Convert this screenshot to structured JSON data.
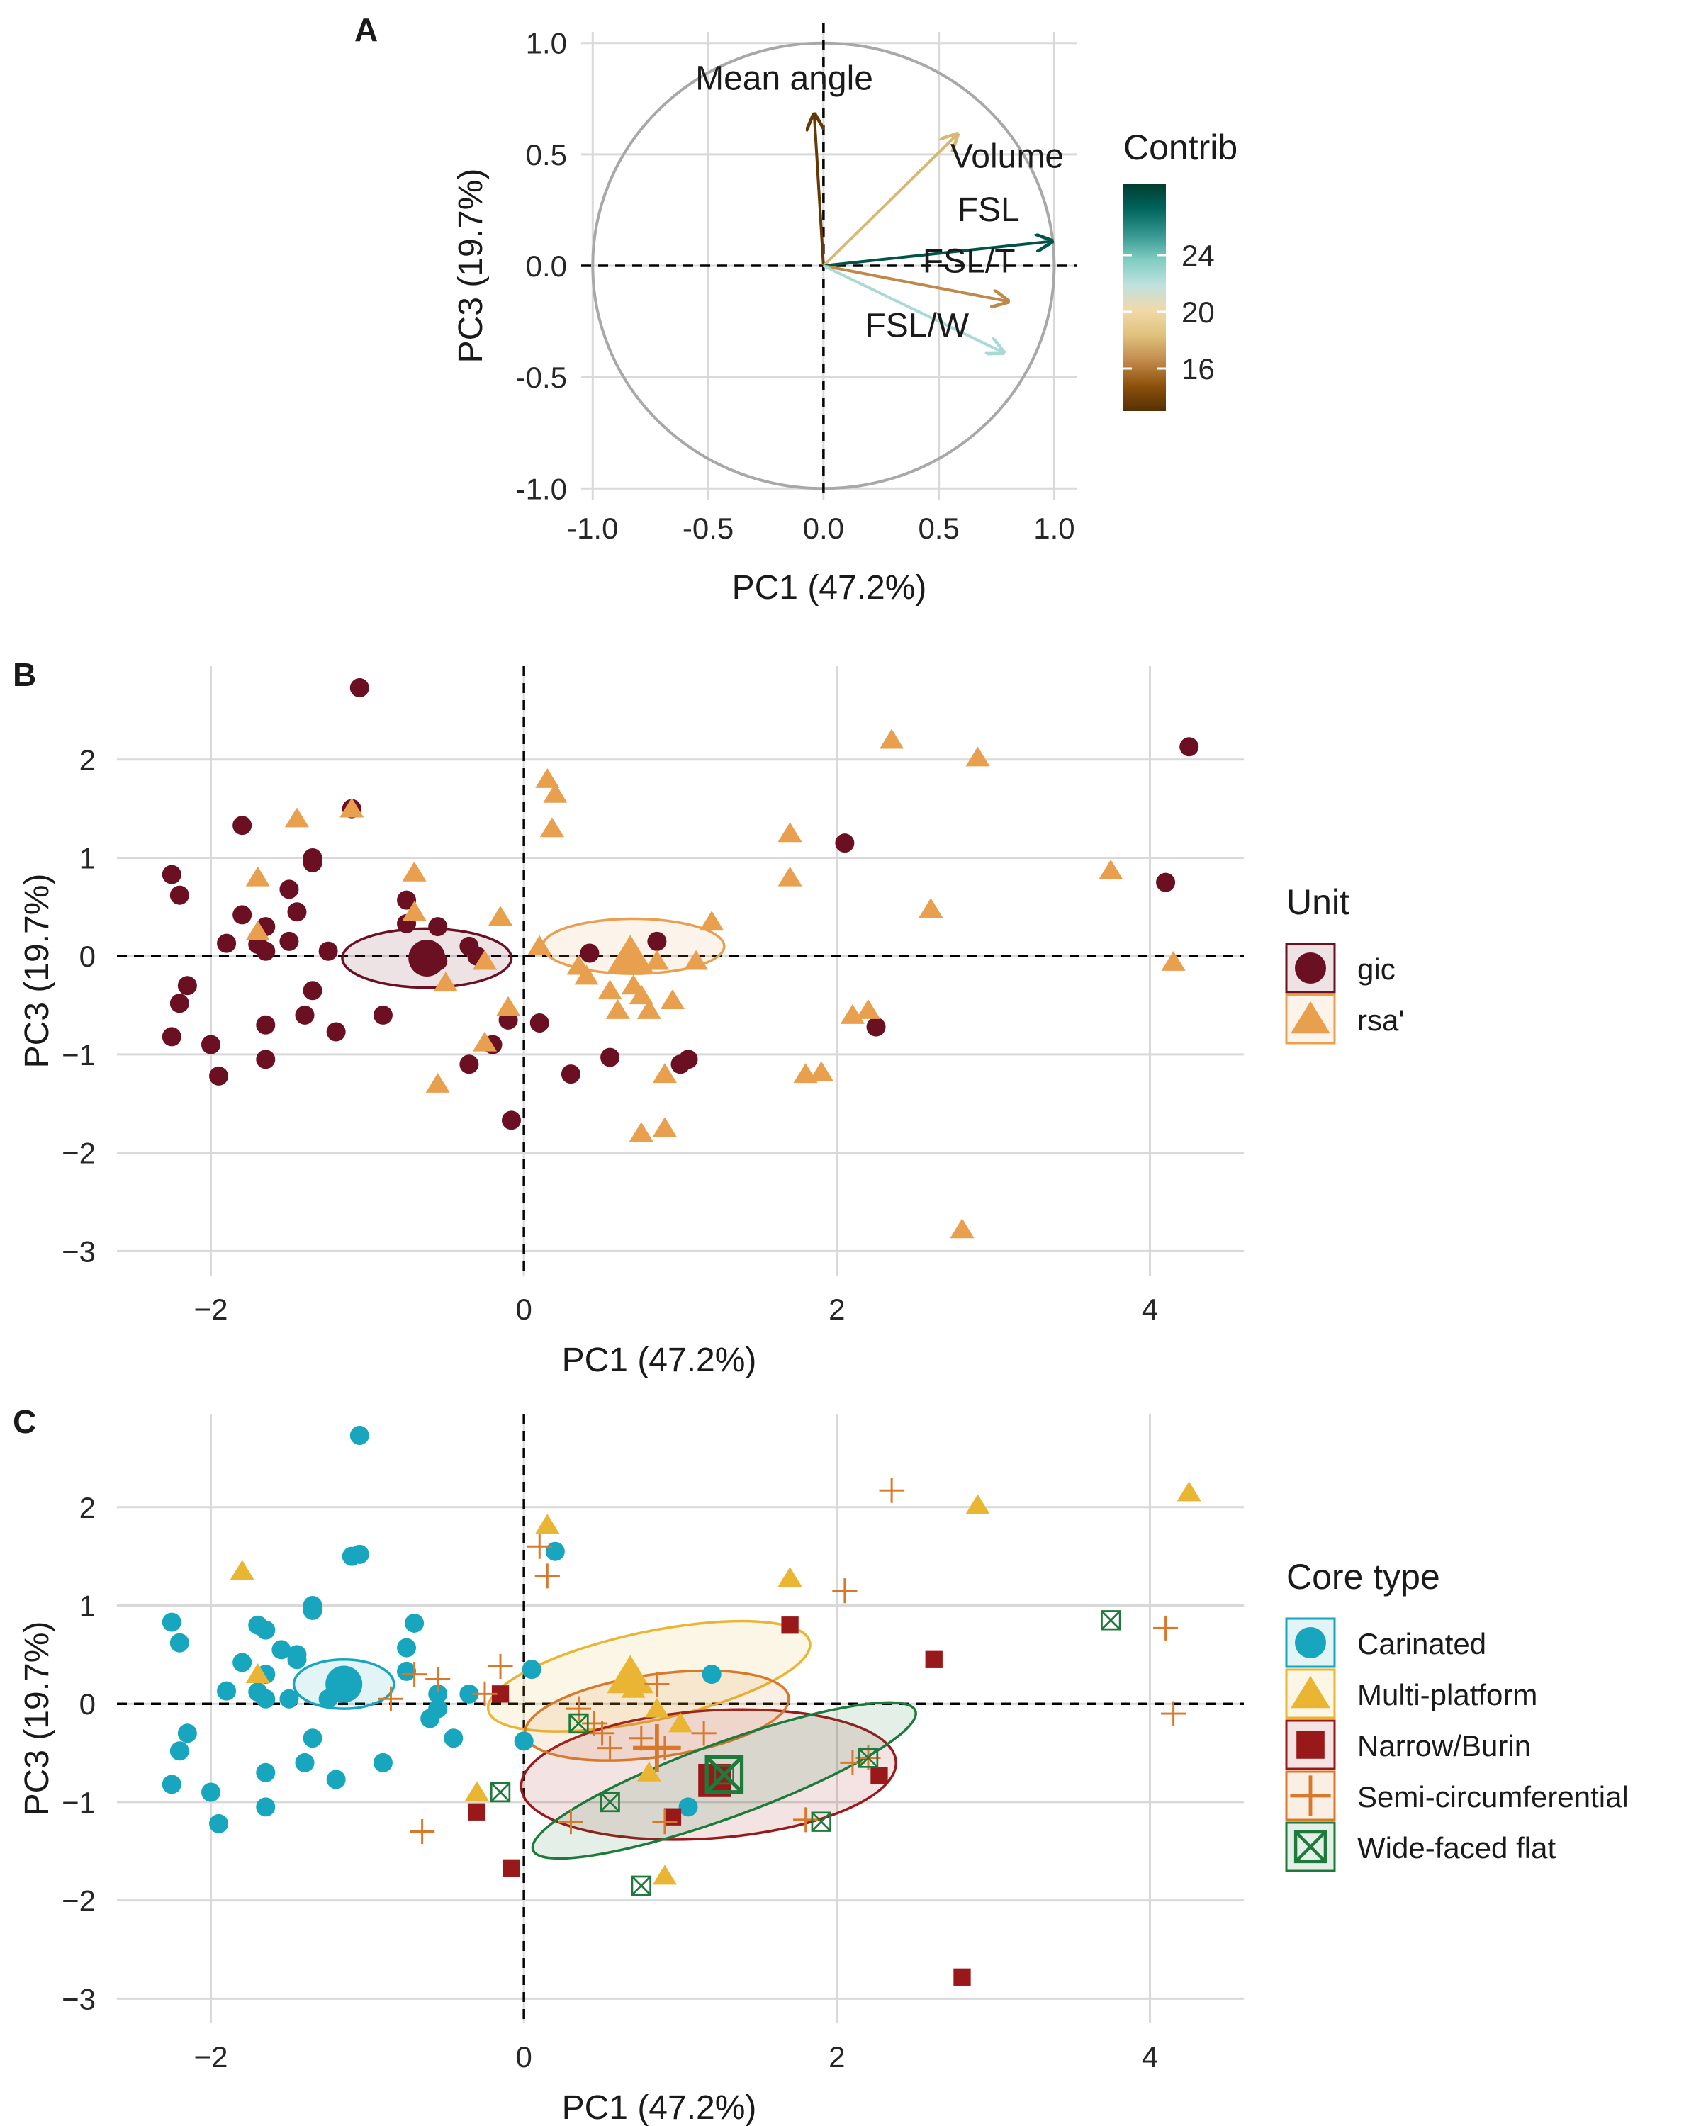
{
  "figure": {
    "panel_labels": [
      "A",
      "B",
      "C"
    ]
  },
  "chart_data": [
    {
      "panel": "A",
      "type": "scatter",
      "subtype": "pca-variable-correlation-circle",
      "xlabel": "PC1 (47.2%)",
      "ylabel": "PC3 (19.7%)",
      "xlim": [
        -1.0,
        1.0
      ],
      "ylim": [
        -1.0,
        1.0
      ],
      "xticks": [
        "-1.0",
        "-0.5",
        "0.0",
        "0.5",
        "1.0"
      ],
      "yticks": [
        "-1.0",
        "-0.5",
        "0.0",
        "0.5",
        "1.0"
      ],
      "grid": true,
      "unit_circle": true,
      "zero_lines": "dashed",
      "legend": {
        "title": "Contrib",
        "placement": "right",
        "type": "colorbar",
        "range": [
          13,
          29
        ],
        "ticks": [
          "16",
          "20",
          "24"
        ],
        "colors": [
          "#543005",
          "#8c510a",
          "#c28a4b",
          "#dfc27d",
          "#f1d9a8",
          "#bfe1e0",
          "#80cdc1",
          "#35978f",
          "#01665e",
          "#003c30"
        ]
      },
      "vectors": [
        {
          "label": "Mean angle",
          "x": -0.04,
          "y": 0.68,
          "contrib": 13.5,
          "color": "#5a3b0c"
        },
        {
          "label": "Volume",
          "x": 0.58,
          "y": 0.59,
          "contrib": 18.0,
          "color": "#e1c28d"
        },
        {
          "label": "FSL",
          "x": 0.99,
          "y": 0.11,
          "contrib": 28.0,
          "color": "#0e4a44"
        },
        {
          "label": "FSL/T",
          "x": 0.8,
          "y": -0.16,
          "contrib": 16.5,
          "color": "#c99a5b"
        },
        {
          "label": "FSL/W",
          "x": 0.78,
          "y": -0.39,
          "contrib": 22.5,
          "color": "#74b9b5"
        }
      ]
    },
    {
      "panel": "B",
      "type": "scatter",
      "subtype": "pca-individuals",
      "xlabel": "PC1 (47.2%)",
      "ylabel": "PC3 (19.7%)",
      "xlim": [
        -2.6,
        4.6
      ],
      "ylim": [
        -3.25,
        2.95
      ],
      "xticks": [
        -2,
        0,
        2,
        4
      ],
      "yticks": [
        -3,
        -2,
        -1,
        0,
        1,
        2
      ],
      "grid": true,
      "zero_lines": "dashed",
      "legend": {
        "title": "Unit",
        "placement": "right"
      },
      "series": [
        {
          "name": "gic",
          "color": "#6b0f22",
          "shape": "circle",
          "centroid": [
            -0.62,
            -0.02
          ],
          "ellipse": {
            "cx": -0.62,
            "cy": -0.02,
            "rx": 0.54,
            "ry": 0.3,
            "angle": 0
          },
          "points": [
            [
              -1.05,
              2.73
            ],
            [
              -1.1,
              1.5
            ],
            [
              -1.8,
              1.33
            ],
            [
              -1.35,
              1.0
            ],
            [
              -1.35,
              0.95
            ],
            [
              -2.25,
              0.83
            ],
            [
              -2.2,
              0.62
            ],
            [
              -1.5,
              0.68
            ],
            [
              -1.8,
              0.42
            ],
            [
              -1.45,
              0.45
            ],
            [
              -1.65,
              0.3
            ],
            [
              -1.9,
              0.13
            ],
            [
              -1.7,
              0.12
            ],
            [
              -1.5,
              0.15
            ],
            [
              -1.65,
              0.05
            ],
            [
              -1.25,
              0.05
            ],
            [
              -2.15,
              -0.3
            ],
            [
              -2.2,
              -0.48
            ],
            [
              -1.35,
              -0.35
            ],
            [
              -1.65,
              -0.7
            ],
            [
              -1.4,
              -0.6
            ],
            [
              -2.25,
              -0.82
            ],
            [
              -2.0,
              -0.9
            ],
            [
              -1.65,
              -1.05
            ],
            [
              -1.95,
              -1.22
            ],
            [
              -1.2,
              -0.77
            ],
            [
              -0.9,
              -0.6
            ],
            [
              -0.75,
              0.57
            ],
            [
              -0.75,
              0.33
            ],
            [
              -0.55,
              0.3
            ],
            [
              -0.55,
              -0.05
            ],
            [
              -0.35,
              0.1
            ],
            [
              -0.3,
              0.0
            ],
            [
              -0.35,
              -1.1
            ],
            [
              -0.2,
              -0.9
            ],
            [
              -0.1,
              -0.65
            ],
            [
              -0.08,
              -1.67
            ],
            [
              0.1,
              -0.68
            ],
            [
              0.3,
              -1.2
            ],
            [
              0.42,
              0.03
            ],
            [
              0.55,
              -1.03
            ],
            [
              0.85,
              0.15
            ],
            [
              1.05,
              -1.05
            ],
            [
              1.0,
              -1.1
            ],
            [
              2.05,
              1.15
            ],
            [
              2.25,
              -0.72
            ],
            [
              4.1,
              0.75
            ],
            [
              4.25,
              2.13
            ]
          ]
        },
        {
          "name": "rsa'",
          "color": "#e8a04f",
          "shape": "triangle",
          "centroid": [
            0.68,
            0.0
          ],
          "ellipse": {
            "cx": 0.7,
            "cy": 0.1,
            "rx": 0.58,
            "ry": 0.28,
            "angle": 0
          },
          "points": [
            [
              -1.45,
              1.4
            ],
            [
              -1.1,
              1.5
            ],
            [
              -1.7,
              0.8
            ],
            [
              -1.7,
              0.25
            ],
            [
              -0.7,
              0.85
            ],
            [
              -0.7,
              0.45
            ],
            [
              -0.5,
              -0.27
            ],
            [
              -0.25,
              -0.05
            ],
            [
              -0.15,
              0.4
            ],
            [
              -0.1,
              -0.52
            ],
            [
              -0.25,
              -0.88
            ],
            [
              -0.55,
              -1.3
            ],
            [
              0.15,
              1.8
            ],
            [
              0.2,
              1.65
            ],
            [
              0.18,
              1.3
            ],
            [
              0.1,
              0.1
            ],
            [
              0.35,
              -0.1
            ],
            [
              0.4,
              -0.2
            ],
            [
              0.55,
              -0.35
            ],
            [
              0.6,
              -0.55
            ],
            [
              0.7,
              -0.3
            ],
            [
              0.75,
              -0.4
            ],
            [
              0.8,
              -0.55
            ],
            [
              0.85,
              -0.05
            ],
            [
              0.95,
              -0.45
            ],
            [
              0.75,
              -1.8
            ],
            [
              0.9,
              -1.75
            ],
            [
              0.9,
              -1.2
            ],
            [
              1.1,
              -0.05
            ],
            [
              1.2,
              0.35
            ],
            [
              1.7,
              1.25
            ],
            [
              1.7,
              0.8
            ],
            [
              1.8,
              -1.2
            ],
            [
              1.9,
              -1.18
            ],
            [
              2.1,
              -0.6
            ],
            [
              2.2,
              -0.55
            ],
            [
              2.35,
              2.2
            ],
            [
              2.6,
              0.48
            ],
            [
              2.8,
              -2.78
            ],
            [
              2.9,
              2.02
            ],
            [
              3.75,
              0.87
            ],
            [
              4.15,
              -0.06
            ]
          ]
        }
      ]
    },
    {
      "panel": "C",
      "type": "scatter",
      "subtype": "pca-individuals",
      "xlabel": "PC1 (47.2%)",
      "ylabel": "PC3 (19.7%)",
      "xlim": [
        -2.6,
        4.6
      ],
      "ylim": [
        -3.25,
        2.95
      ],
      "xticks": [
        -2,
        0,
        2,
        4
      ],
      "yticks": [
        -3,
        -2,
        -1,
        0,
        1,
        2
      ],
      "grid": true,
      "zero_lines": "dashed",
      "legend": {
        "title": "Core type",
        "placement": "right"
      },
      "series": [
        {
          "name": "Carinated",
          "color": "#17a6bd",
          "shape": "circle",
          "centroid": [
            -1.15,
            0.2
          ],
          "ellipse": {
            "cx": -1.15,
            "cy": 0.2,
            "rx": 0.32,
            "ry": 0.25,
            "angle": 0
          },
          "points": [
            [
              -1.05,
              2.73
            ],
            [
              -1.1,
              1.5
            ],
            [
              -1.05,
              1.52
            ],
            [
              -1.35,
              1.0
            ],
            [
              -1.35,
              0.95
            ],
            [
              -1.45,
              0.5
            ],
            [
              -1.55,
              0.55
            ],
            [
              -2.25,
              0.83
            ],
            [
              -2.2,
              0.62
            ],
            [
              -1.7,
              0.8
            ],
            [
              -1.65,
              0.75
            ],
            [
              -1.8,
              0.42
            ],
            [
              -1.45,
              0.45
            ],
            [
              -1.65,
              0.3
            ],
            [
              -1.9,
              0.13
            ],
            [
              -1.7,
              0.12
            ],
            [
              -1.5,
              0.05
            ],
            [
              -1.65,
              0.05
            ],
            [
              -1.25,
              0.05
            ],
            [
              -0.7,
              0.82
            ],
            [
              -0.75,
              0.57
            ],
            [
              -0.75,
              0.33
            ],
            [
              -0.55,
              0.1
            ],
            [
              -0.35,
              0.1
            ],
            [
              -0.6,
              -0.15
            ],
            [
              -0.45,
              -0.35
            ],
            [
              -0.55,
              -0.05
            ],
            [
              -2.15,
              -0.3
            ],
            [
              -2.2,
              -0.48
            ],
            [
              -1.35,
              -0.35
            ],
            [
              -1.65,
              -0.7
            ],
            [
              -1.4,
              -0.6
            ],
            [
              -2.25,
              -0.82
            ],
            [
              -2.0,
              -0.9
            ],
            [
              -1.65,
              -1.05
            ],
            [
              -1.95,
              -1.22
            ],
            [
              -1.2,
              -0.77
            ],
            [
              -0.9,
              -0.6
            ],
            [
              0.05,
              0.35
            ],
            [
              0.2,
              1.55
            ],
            [
              0.0,
              -0.38
            ],
            [
              1.05,
              -1.05
            ],
            [
              1.2,
              0.3
            ]
          ]
        },
        {
          "name": "Multi-platform",
          "color": "#eab533",
          "shape": "triangle",
          "centroid": [
            0.68,
            0.28
          ],
          "ellipse": {
            "cx": 0.8,
            "cy": 0.28,
            "rx": 1.05,
            "ry": 0.45,
            "angle": 12
          },
          "points": [
            [
              -1.8,
              1.35
            ],
            [
              -1.7,
              0.3
            ],
            [
              0.15,
              1.82
            ],
            [
              1.7,
              1.28
            ],
            [
              2.9,
              2.02
            ],
            [
              4.25,
              2.15
            ],
            [
              0.85,
              -0.05
            ],
            [
              0.8,
              -0.7
            ],
            [
              1.0,
              -0.2
            ],
            [
              0.9,
              -1.75
            ],
            [
              -0.3,
              -0.9
            ],
            [
              0.7,
              0.15
            ]
          ]
        },
        {
          "name": "Narrow/Burin",
          "color": "#99191b",
          "shape": "square",
          "centroid": [
            1.22,
            -0.78
          ],
          "ellipse": {
            "cx": 1.18,
            "cy": -0.72,
            "rx": 1.2,
            "ry": 0.65,
            "angle": 4
          },
          "points": [
            [
              -0.15,
              0.1
            ],
            [
              -0.3,
              -1.1
            ],
            [
              -0.08,
              -1.67
            ],
            [
              0.95,
              -1.15
            ],
            [
              1.7,
              0.8
            ],
            [
              2.62,
              0.45
            ],
            [
              2.27,
              -0.73
            ],
            [
              2.8,
              -2.78
            ],
            [
              1.25,
              -0.75
            ]
          ]
        },
        {
          "name": "Semi-circumferential",
          "color": "#d8782a",
          "shape": "plus",
          "centroid": [
            0.85,
            -0.45
          ],
          "ellipse": {
            "cx": 0.85,
            "cy": -0.12,
            "rx": 0.85,
            "ry": 0.42,
            "angle": 8
          },
          "points": [
            [
              -0.7,
              0.3
            ],
            [
              -0.55,
              0.25
            ],
            [
              -0.85,
              0.05
            ],
            [
              -0.15,
              0.38
            ],
            [
              -0.25,
              0.1
            ],
            [
              -0.65,
              -1.3
            ],
            [
              0.15,
              1.3
            ],
            [
              0.1,
              1.6
            ],
            [
              0.35,
              -0.05
            ],
            [
              0.45,
              -0.2
            ],
            [
              0.5,
              -0.3
            ],
            [
              0.75,
              -0.35
            ],
            [
              0.55,
              -0.45
            ],
            [
              0.9,
              -1.2
            ],
            [
              1.15,
              -0.3
            ],
            [
              0.3,
              -1.2
            ],
            [
              0.85,
              0.2
            ],
            [
              1.8,
              -1.18
            ],
            [
              2.05,
              1.15
            ],
            [
              2.35,
              2.17
            ],
            [
              2.1,
              -0.6
            ],
            [
              2.2,
              -0.55
            ],
            [
              4.1,
              0.77
            ],
            [
              4.15,
              -0.1
            ],
            [
              0.9,
              -0.45
            ]
          ]
        },
        {
          "name": "Wide-faced flat",
          "color": "#1d7a3a",
          "shape": "square-cross",
          "centroid": [
            1.28,
            -0.72
          ],
          "ellipse": {
            "cx": 1.28,
            "cy": -0.78,
            "rx": 1.3,
            "ry": 0.38,
            "angle": 20
          },
          "points": [
            [
              -0.15,
              -0.9
            ],
            [
              0.35,
              -0.2
            ],
            [
              0.55,
              -1.0
            ],
            [
              0.75,
              -1.85
            ],
            [
              1.9,
              -1.2
            ],
            [
              2.2,
              -0.55
            ],
            [
              3.75,
              0.85
            ],
            [
              1.28,
              -0.72
            ]
          ]
        }
      ]
    }
  ]
}
